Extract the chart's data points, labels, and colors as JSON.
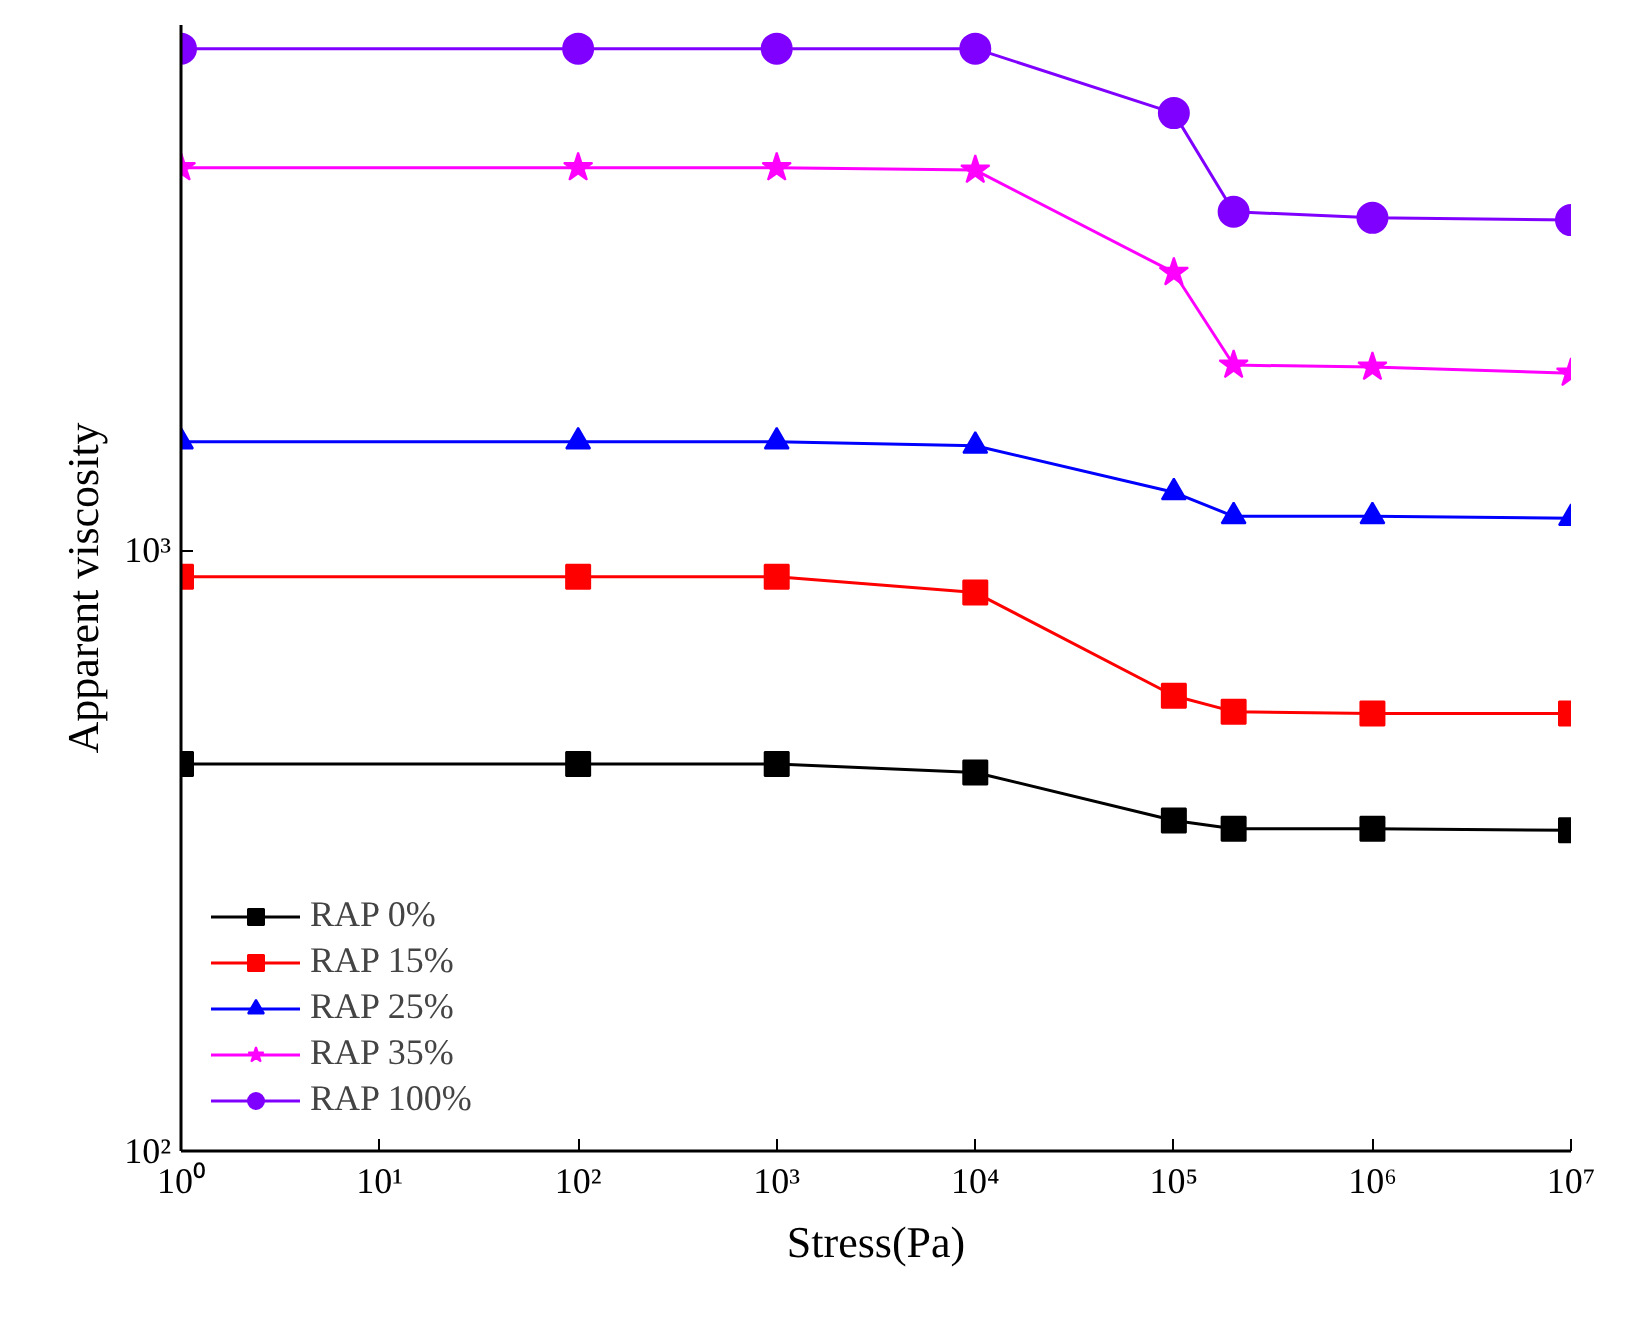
{
  "chart_data": {
    "type": "line",
    "xlabel": "Stress(Pa)",
    "ylabel": "Apparent viscosity",
    "log": "xy",
    "grid": false,
    "legend": "bottom left",
    "line_style": "solid",
    "x": [
      1,
      100,
      1000,
      10000,
      100000,
      200000,
      1000000,
      10000000
    ],
    "xlim": [
      1,
      10000000
    ],
    "xticks": [
      {
        "value": 1,
        "label": "10⁰"
      },
      {
        "value": 10,
        "label": "10¹"
      },
      {
        "value": 100,
        "label": "10²"
      },
      {
        "value": 1000,
        "label": "10³"
      },
      {
        "value": 10000,
        "label": "10⁴"
      },
      {
        "value": 100000,
        "label": "10⁵"
      },
      {
        "value": 1000000,
        "label": "10⁶"
      },
      {
        "value": 10000000,
        "label": "10⁷"
      }
    ],
    "ylim": [
      100,
      7500
    ],
    "yticks": [
      {
        "value": 100,
        "label": "10²"
      },
      {
        "value": 1000,
        "label": "10³"
      }
    ],
    "series": [
      {
        "name": "RAP 0%",
        "color": "#000000",
        "marker": "square",
        "values": [
          441,
          441,
          441,
          427,
          355,
          344,
          344,
          342
        ]
      },
      {
        "name": "RAP 15%",
        "color": "#ff0000",
        "marker": "square",
        "values": [
          904,
          904,
          904,
          851,
          573,
          539,
          535,
          535
        ]
      },
      {
        "name": "RAP 25%",
        "color": "#0000ff",
        "marker": "triangle",
        "values": [
          1518,
          1518,
          1518,
          1494,
          1250,
          1140,
          1140,
          1132
        ]
      },
      {
        "name": "RAP 35%",
        "color": "#ff00ff",
        "marker": "star",
        "values": [
          4340,
          4340,
          4340,
          4300,
          2904,
          2036,
          2020,
          1974
        ]
      },
      {
        "name": "RAP 100%",
        "color": "#8000ff",
        "marker": "circle",
        "values": [
          6850,
          6850,
          6850,
          6850,
          5350,
          3665,
          3580,
          3550
        ]
      }
    ]
  }
}
